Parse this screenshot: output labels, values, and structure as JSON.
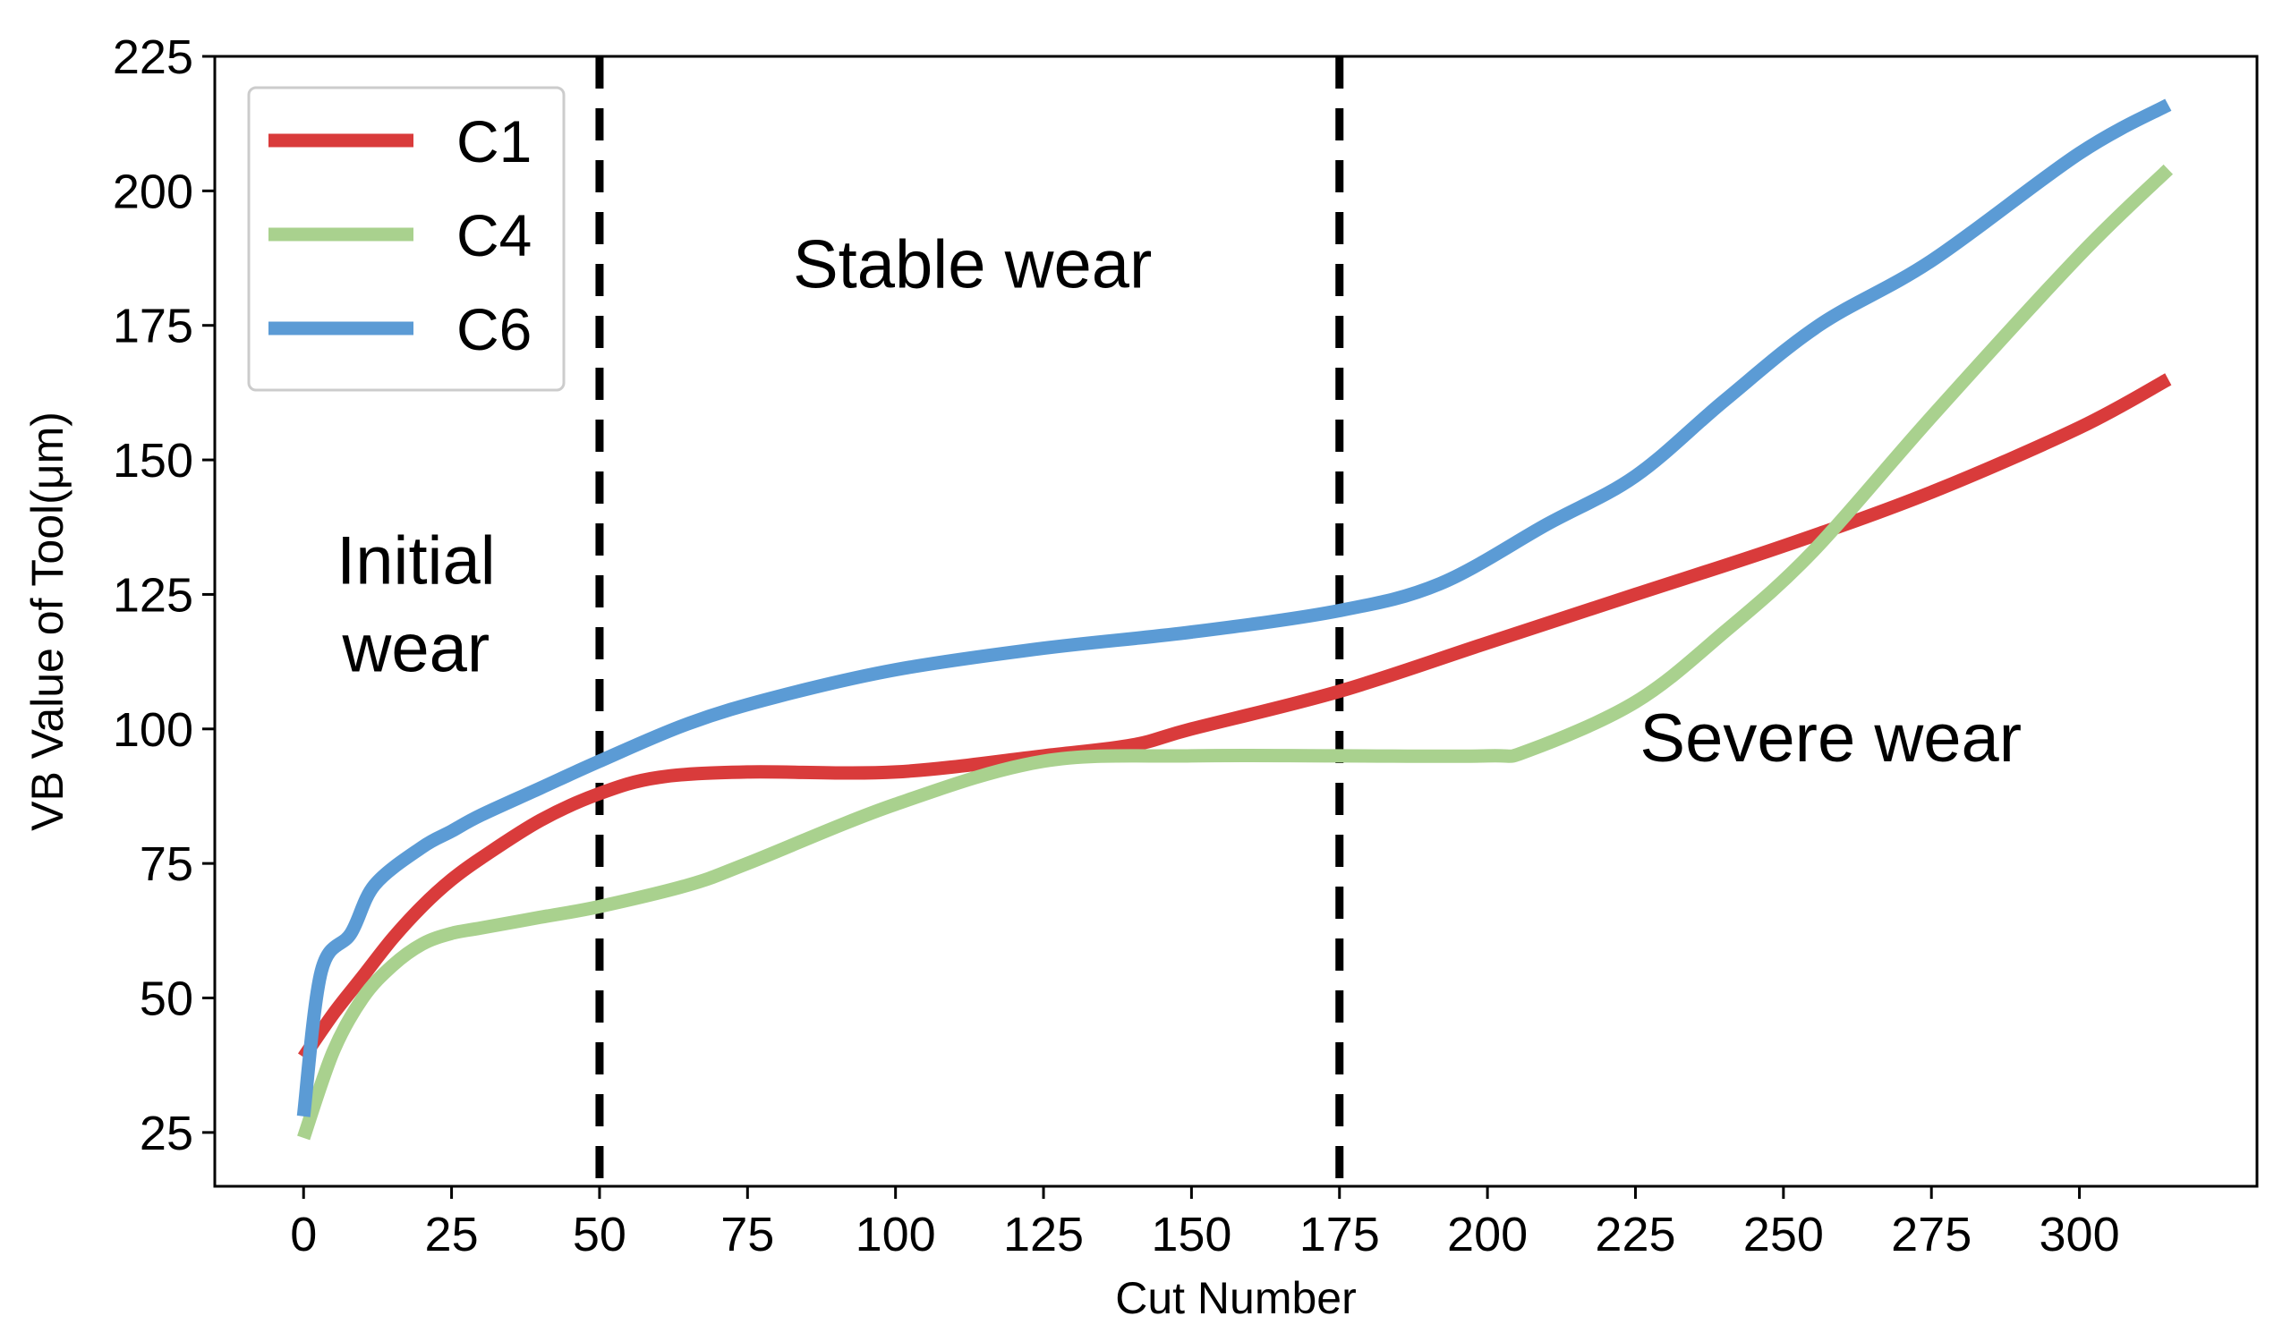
{
  "chart_data": {
    "type": "line",
    "title": "",
    "xlabel": "Cut Number",
    "ylabel": "VB Value of Tool(μm)",
    "xlim": [
      -15,
      330
    ],
    "ylim": [
      15,
      225
    ],
    "xticks": [
      0,
      25,
      50,
      75,
      100,
      125,
      150,
      175,
      200,
      225,
      250,
      275,
      300
    ],
    "yticks": [
      25,
      50,
      75,
      100,
      125,
      150,
      175,
      200,
      225
    ],
    "grid": false,
    "legend_position": "top-left",
    "series": [
      {
        "name": "C1",
        "color": "#d93b3b",
        "x": [
          0,
          5,
          10,
          15,
          20,
          25,
          30,
          40,
          50,
          60,
          75,
          100,
          125,
          140,
          150,
          175,
          200,
          225,
          250,
          275,
          300,
          315
        ],
        "y": [
          39,
          47,
          54,
          61,
          67,
          72,
          76,
          83,
          88,
          91,
          92,
          92,
          95,
          97,
          100,
          107,
          116,
          125,
          134,
          144,
          156,
          165
        ]
      },
      {
        "name": "C4",
        "color": "#a9d18e",
        "x": [
          0,
          5,
          10,
          15,
          20,
          25,
          30,
          40,
          50,
          65,
          75,
          100,
          125,
          150,
          175,
          200,
          207,
          225,
          240,
          255,
          275,
          300,
          315
        ],
        "y": [
          24,
          40,
          50,
          56,
          60,
          62,
          63,
          65,
          67,
          71,
          75,
          86,
          94,
          95,
          95,
          95,
          96,
          105,
          118,
          133,
          158,
          188,
          204
        ]
      },
      {
        "name": "C6",
        "color": "#5b9bd5",
        "x": [
          0,
          3,
          8,
          12,
          20,
          25,
          30,
          40,
          50,
          65,
          80,
          100,
          125,
          150,
          175,
          192,
          210,
          225,
          240,
          256,
          275,
          300,
          315
        ],
        "y": [
          28,
          55,
          62,
          71,
          78,
          81,
          84,
          89,
          94,
          101,
          106,
          111,
          115,
          118,
          122,
          127,
          138,
          147,
          161,
          175,
          187,
          207,
          216
        ]
      }
    ],
    "vlines": [
      50,
      175
    ],
    "annotations": [
      {
        "lines": [
          "Initial",
          "wear"
        ],
        "x": 19,
        "y": 127
      },
      {
        "lines": [
          "Stable wear"
        ],
        "x": 113,
        "y": 182
      },
      {
        "lines": [
          "Severe wear"
        ],
        "x": 258,
        "y": 94
      }
    ]
  }
}
